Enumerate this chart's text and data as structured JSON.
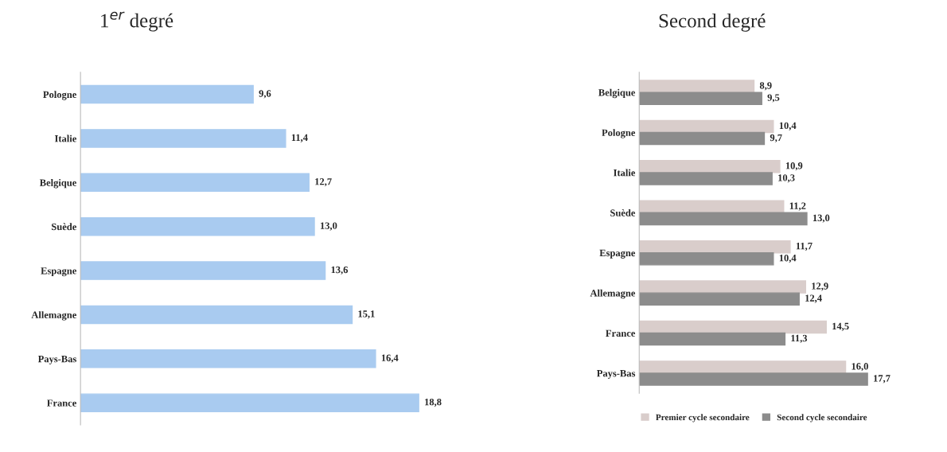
{
  "chart_data": [
    {
      "type": "bar",
      "orientation": "horizontal",
      "title": "1$^{er}$ degré",
      "categories": [
        "Pologne",
        "Italie",
        "Belgique",
        "Suède",
        "Espagne",
        "Allemagne",
        "Pays-Bas",
        "France"
      ],
      "series": [
        {
          "color": "#a9cbf0",
          "values": [
            9.6,
            11.4,
            12.7,
            13.0,
            13.6,
            15.1,
            16.4,
            18.8
          ],
          "value_labels": [
            "9,6",
            "11,4",
            "12,7",
            "13,0",
            "13,6",
            "15,1",
            "16,4",
            "18,8"
          ]
        }
      ],
      "tick_labels": "y",
      "grid": false,
      "legend": false
    },
    {
      "type": "bar",
      "orientation": "horizontal",
      "title": "Second degré",
      "categories": [
        "Belgique",
        "Pologne",
        "Italie",
        "Suède",
        "Espagne",
        "Allemagne",
        "France",
        "Pays-Bas"
      ],
      "series": [
        {
          "name": "Premier cycle secondaire",
          "color": "#d9cdcb",
          "values": [
            8.9,
            10.4,
            10.9,
            11.2,
            11.7,
            12.9,
            14.5,
            16.0
          ],
          "value_labels": [
            "8,9",
            "10,4",
            "10,9",
            "11,2",
            "11,7",
            "12,9",
            "14,5",
            "16,0"
          ]
        },
        {
          "name": "Second cycle secondaire",
          "color": "#8c8c8c",
          "values": [
            9.5,
            9.7,
            10.3,
            13.0,
            10.4,
            12.4,
            11.3,
            17.7
          ],
          "value_labels": [
            "9,5",
            "9,7",
            "10,3",
            "13,0",
            "10,4",
            "12,4",
            "11,3",
            "17,7"
          ]
        }
      ],
      "tick_labels": "y",
      "grid": false,
      "legend": "bottom"
    }
  ]
}
